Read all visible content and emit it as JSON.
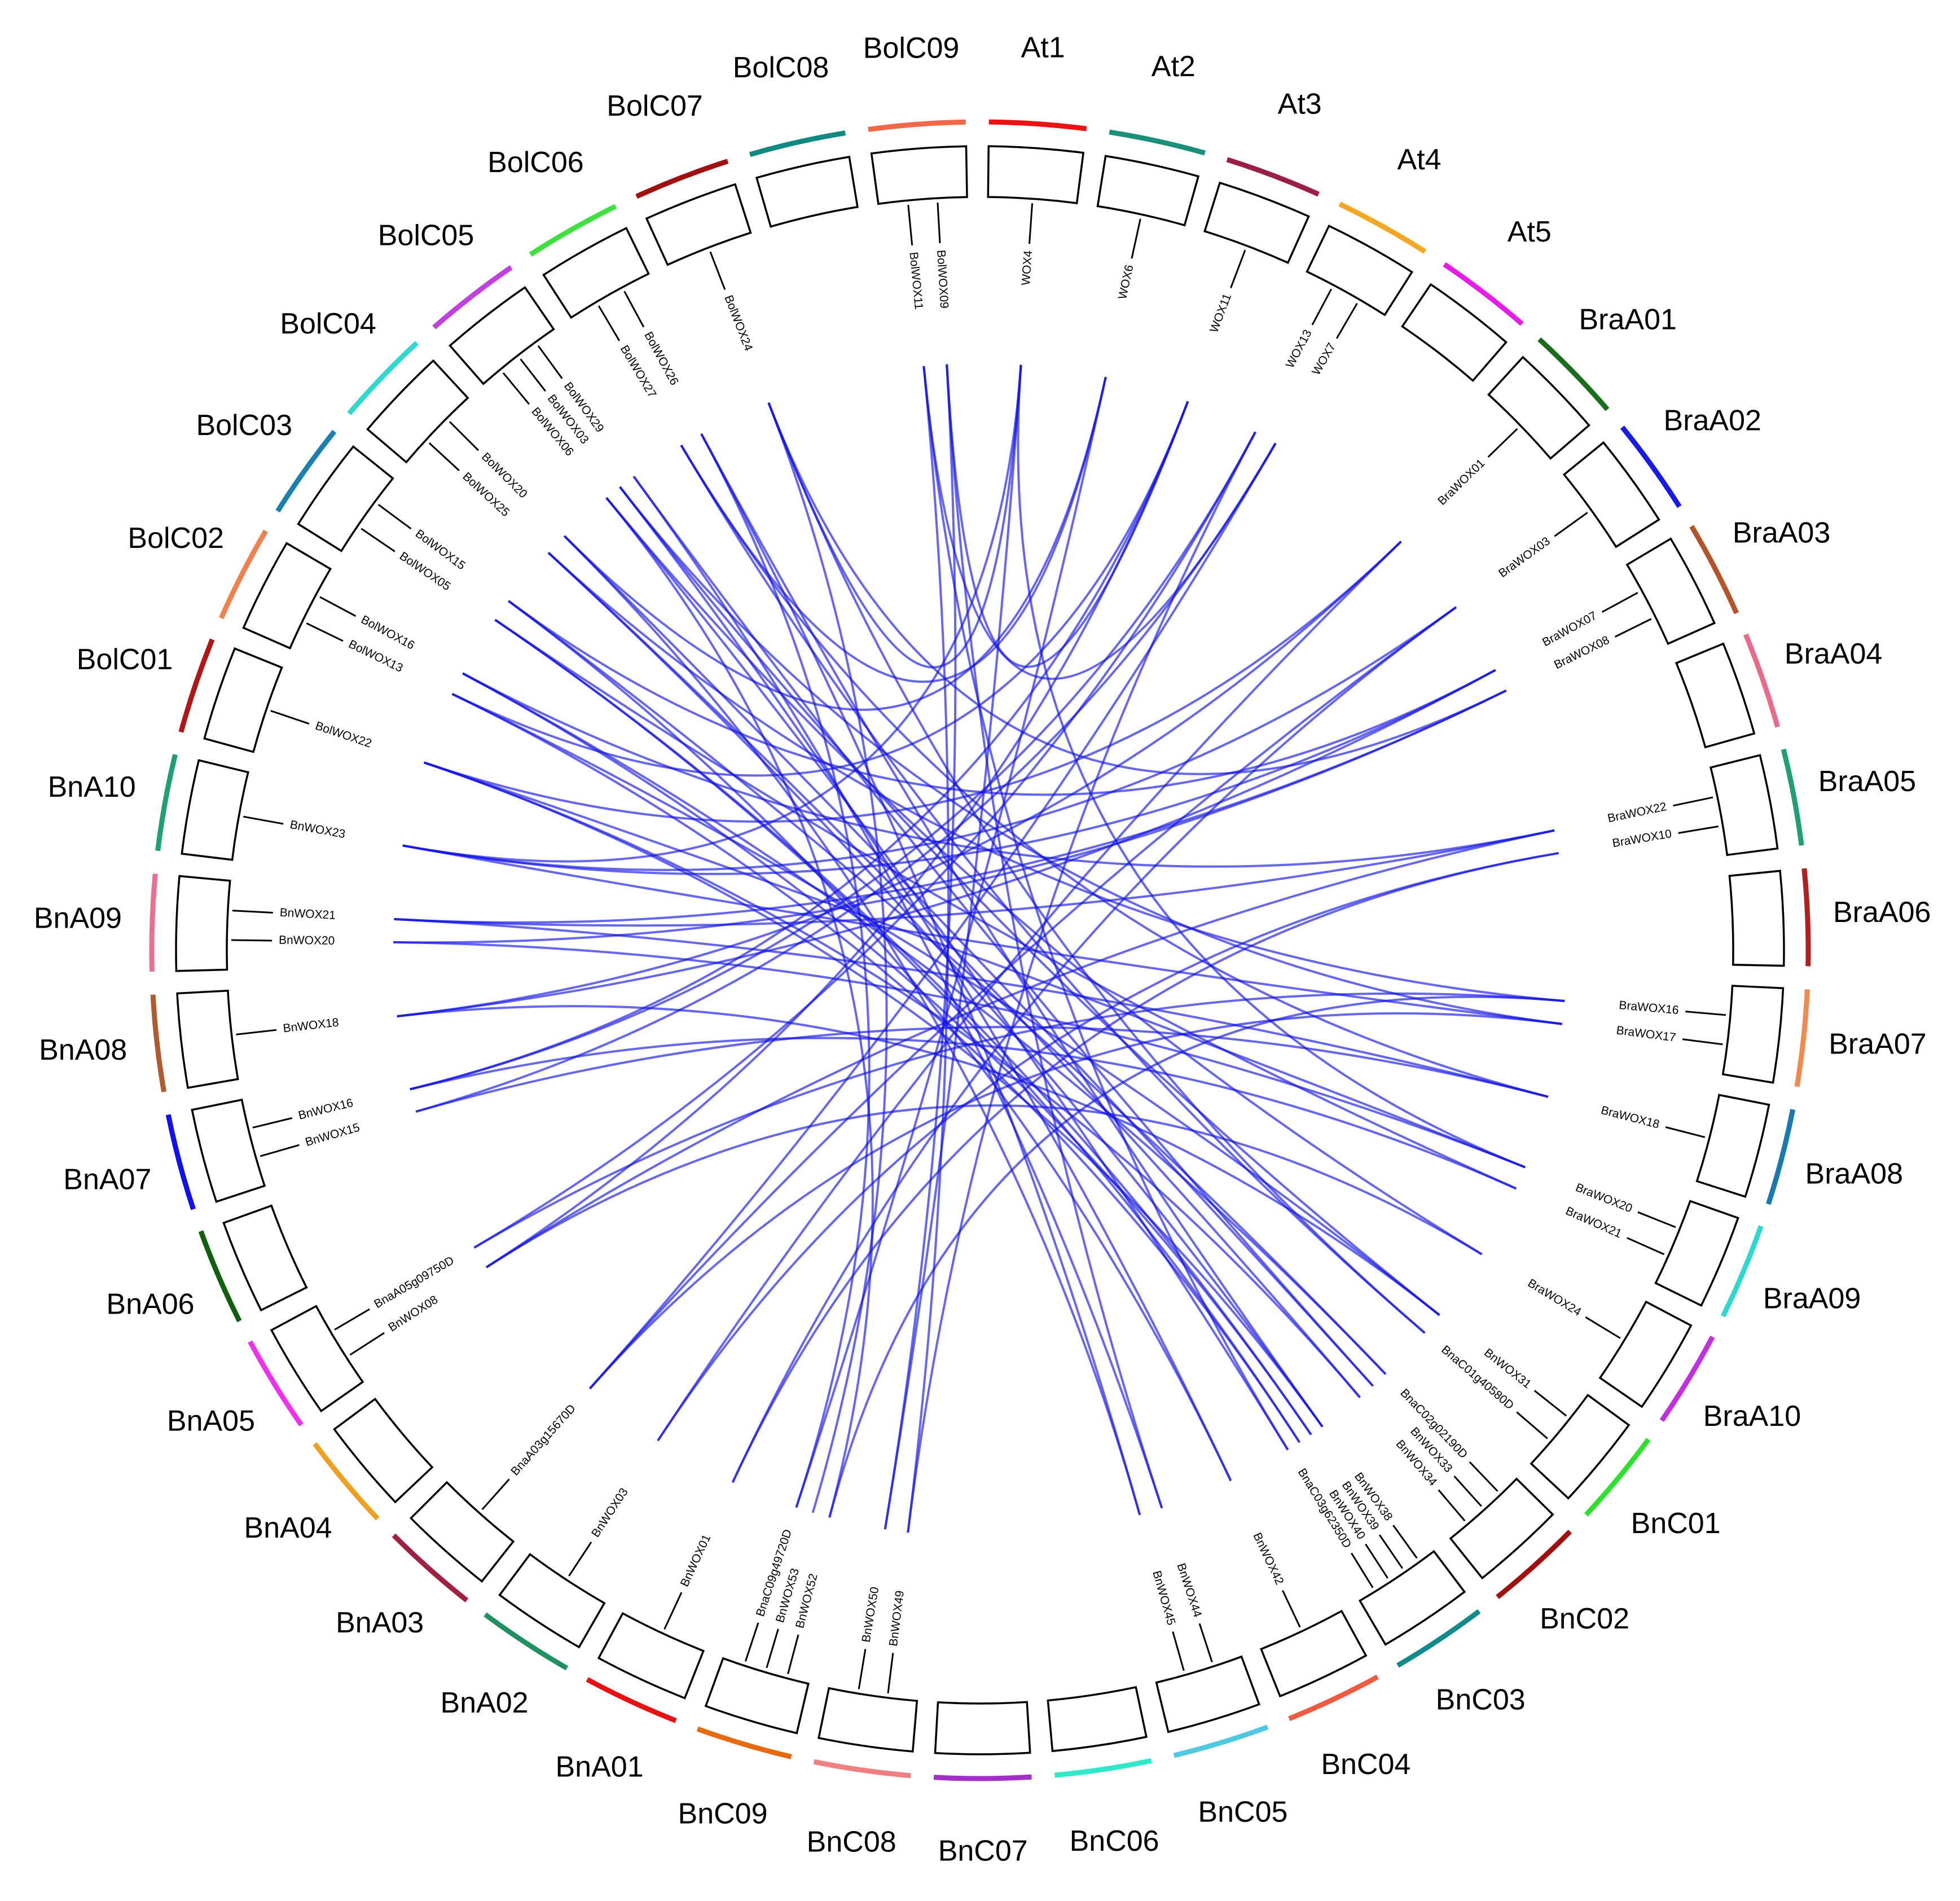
{
  "chromosomes": [
    {
      "name": "At1",
      "color": "#e81414"
    },
    {
      "name": "At2",
      "color": "#1a8f7a"
    },
    {
      "name": "At3",
      "color": "#9b1d4a"
    },
    {
      "name": "At4",
      "color": "#f5a623"
    },
    {
      "name": "At5",
      "color": "#e81ce8"
    },
    {
      "name": "BraA01",
      "color": "#1a6e1a"
    },
    {
      "name": "BraA02",
      "color": "#1a1ae8"
    },
    {
      "name": "BraA03",
      "color": "#b5542a"
    },
    {
      "name": "BraA04",
      "color": "#e86b8a"
    },
    {
      "name": "BraA05",
      "color": "#20a070"
    },
    {
      "name": "BraA06",
      "color": "#b02020"
    },
    {
      "name": "BraA07",
      "color": "#f08a50"
    },
    {
      "name": "BraA08",
      "color": "#1a7ab0"
    },
    {
      "name": "BraA09",
      "color": "#30d8d0"
    },
    {
      "name": "BraA10",
      "color": "#c030e0"
    },
    {
      "name": "BnC01",
      "color": "#30e030"
    },
    {
      "name": "BnC02",
      "color": "#a01010"
    },
    {
      "name": "BnC03",
      "color": "#108a8a"
    },
    {
      "name": "BnC04",
      "color": "#f05a40"
    },
    {
      "name": "BnC05",
      "color": "#50c8e0"
    },
    {
      "name": "BnC06",
      "color": "#30e8c8"
    },
    {
      "name": "BnC07",
      "color": "#a030c8"
    },
    {
      "name": "BnC08",
      "color": "#f08080"
    },
    {
      "name": "BnC09",
      "color": "#e86a10"
    },
    {
      "name": "BnA01",
      "color": "#e81010"
    },
    {
      "name": "BnA02",
      "color": "#209060"
    },
    {
      "name": "BnA03",
      "color": "#a02040"
    },
    {
      "name": "BnA04",
      "color": "#f0a020"
    },
    {
      "name": "BnA05",
      "color": "#f030f0"
    },
    {
      "name": "BnA06",
      "color": "#106010"
    },
    {
      "name": "BnA07",
      "color": "#1010f0"
    },
    {
      "name": "BnA08",
      "color": "#b05a30"
    },
    {
      "name": "BnA09",
      "color": "#e87090"
    },
    {
      "name": "BnA10",
      "color": "#20a070"
    },
    {
      "name": "BolC01",
      "color": "#b01818"
    },
    {
      "name": "BolC02",
      "color": "#f08050"
    },
    {
      "name": "BolC03",
      "color": "#1a80b0"
    },
    {
      "name": "BolC04",
      "color": "#30d8d0"
    },
    {
      "name": "BolC05",
      "color": "#c040e0"
    },
    {
      "name": "BolC06",
      "color": "#40e040"
    },
    {
      "name": "BolC07",
      "color": "#a01010"
    },
    {
      "name": "BolC08",
      "color": "#108a80"
    },
    {
      "name": "BolC09",
      "color": "#f06848"
    }
  ],
  "genes": [
    {
      "label": "WOX4",
      "chromosome": 0
    },
    {
      "label": "WOX6",
      "chromosome": 1
    },
    {
      "label": "WOX11",
      "chromosome": 2
    },
    {
      "label": "WOX13",
      "chromosome": 3
    },
    {
      "label": "WOX7",
      "chromosome": 3
    },
    {
      "label": "BraWOX01",
      "chromosome": 5
    },
    {
      "label": "BraWOX03",
      "chromosome": 6
    },
    {
      "label": "BraWOX07",
      "chromosome": 7
    },
    {
      "label": "BraWOX08",
      "chromosome": 7
    },
    {
      "label": "BraWOX22",
      "chromosome": 9
    },
    {
      "label": "BraWOX10",
      "chromosome": 9
    },
    {
      "label": "BraWOX16",
      "chromosome": 11
    },
    {
      "label": "BraWOX17",
      "chromosome": 11
    },
    {
      "label": "BraWOX18",
      "chromosome": 12
    },
    {
      "label": "BraWOX20",
      "chromosome": 13
    },
    {
      "label": "BraWOX21",
      "chromosome": 13
    },
    {
      "label": "BraWOX24",
      "chromosome": 14
    },
    {
      "label": "BnWOX31",
      "chromosome": 15
    },
    {
      "label": "BnaC01g40580D",
      "chromosome": 15
    },
    {
      "label": "BnaC02g02190D",
      "chromosome": 16
    },
    {
      "label": "BnWOX33",
      "chromosome": 16
    },
    {
      "label": "BnWOX34",
      "chromosome": 16
    },
    {
      "label": "BnWOX38",
      "chromosome": 17
    },
    {
      "label": "BnWOX39",
      "chromosome": 17
    },
    {
      "label": "BnWOX40",
      "chromosome": 17
    },
    {
      "label": "BnaC03g62350D",
      "chromosome": 17
    },
    {
      "label": "BnWOX42",
      "chromosome": 18
    },
    {
      "label": "BnWOX44",
      "chromosome": 19
    },
    {
      "label": "BnWOX45",
      "chromosome": 19
    },
    {
      "label": "BnWOX49",
      "chromosome": 22
    },
    {
      "label": "BnWOX50",
      "chromosome": 22
    },
    {
      "label": "BnWOX52",
      "chromosome": 23
    },
    {
      "label": "BnWOX53",
      "chromosome": 23
    },
    {
      "label": "BnaC09g49720D",
      "chromosome": 23
    },
    {
      "label": "BnWOX01",
      "chromosome": 24
    },
    {
      "label": "BnWOX03",
      "chromosome": 25
    },
    {
      "label": "BnaA03g15670D",
      "chromosome": 26
    },
    {
      "label": "BnWOX08",
      "chromosome": 28
    },
    {
      "label": "BnaA05g09750D",
      "chromosome": 28
    },
    {
      "label": "BnWOX15",
      "chromosome": 30
    },
    {
      "label": "BnWOX16",
      "chromosome": 30
    },
    {
      "label": "BnWOX18",
      "chromosome": 31
    },
    {
      "label": "BnWOX20",
      "chromosome": 32
    },
    {
      "label": "BnWOX21",
      "chromosome": 32
    },
    {
      "label": "BnWOX23",
      "chromosome": 33
    },
    {
      "label": "BolWOX22",
      "chromosome": 34
    },
    {
      "label": "BolWOX13",
      "chromosome": 35
    },
    {
      "label": "BolWOX16",
      "chromosome": 35
    },
    {
      "label": "BolWOX05",
      "chromosome": 36
    },
    {
      "label": "BolWOX15",
      "chromosome": 36
    },
    {
      "label": "BolWOX25",
      "chromosome": 37
    },
    {
      "label": "BolWOX20",
      "chromosome": 37
    },
    {
      "label": "BolWOX06",
      "chromosome": 38
    },
    {
      "label": "BolWOX03",
      "chromosome": 38
    },
    {
      "label": "BolWOX29",
      "chromosome": 38
    },
    {
      "label": "BolWOX27",
      "chromosome": 39
    },
    {
      "label": "BolWOX26",
      "chromosome": 39
    },
    {
      "label": "BolWOX24",
      "chromosome": 40
    },
    {
      "label": "BolWOX11",
      "chromosome": 42
    },
    {
      "label": "BolWOX09",
      "chromosome": 42
    }
  ],
  "link_color": "#1414e6",
  "links": [
    [
      0,
      30
    ],
    [
      0,
      44
    ],
    [
      0,
      14
    ],
    [
      1,
      33
    ],
    [
      1,
      51
    ],
    [
      2,
      46
    ],
    [
      2,
      40
    ],
    [
      3,
      38
    ],
    [
      3,
      29
    ],
    [
      4,
      39
    ],
    [
      5,
      45
    ],
    [
      5,
      35
    ],
    [
      6,
      44
    ],
    [
      6,
      36
    ],
    [
      7,
      41
    ],
    [
      7,
      49
    ],
    [
      8,
      42
    ],
    [
      9,
      47
    ],
    [
      9,
      37
    ],
    [
      10,
      34
    ],
    [
      11,
      50
    ],
    [
      11,
      31
    ],
    [
      12,
      53
    ],
    [
      13,
      43
    ],
    [
      13,
      55
    ],
    [
      14,
      45
    ],
    [
      15,
      48
    ],
    [
      16,
      52
    ],
    [
      17,
      46
    ],
    [
      17,
      41
    ],
    [
      18,
      57
    ],
    [
      19,
      49
    ],
    [
      20,
      54
    ],
    [
      21,
      50
    ],
    [
      22,
      45
    ],
    [
      22,
      56
    ],
    [
      23,
      47
    ],
    [
      24,
      48
    ],
    [
      25,
      58
    ],
    [
      26,
      53
    ],
    [
      27,
      59
    ],
    [
      28,
      51
    ],
    [
      29,
      58
    ],
    [
      30,
      59
    ],
    [
      31,
      52
    ],
    [
      32,
      57
    ],
    [
      33,
      56
    ],
    [
      34,
      6
    ],
    [
      35,
      10
    ],
    [
      36,
      12
    ],
    [
      37,
      16
    ],
    [
      38,
      11
    ],
    [
      39,
      13
    ],
    [
      40,
      15
    ],
    [
      41,
      5
    ],
    [
      42,
      14
    ],
    [
      43,
      9
    ],
    [
      44,
      7
    ],
    [
      45,
      21
    ],
    [
      46,
      24
    ],
    [
      47,
      19
    ],
    [
      48,
      23
    ],
    [
      49,
      26
    ],
    [
      50,
      22
    ],
    [
      51,
      20
    ],
    [
      52,
      25
    ],
    [
      53,
      17
    ],
    [
      54,
      27
    ],
    [
      55,
      18
    ],
    [
      56,
      28
    ],
    [
      57,
      8
    ],
    [
      58,
      4
    ],
    [
      59,
      2
    ],
    [
      0,
      57
    ],
    [
      1,
      55
    ],
    [
      2,
      37
    ],
    [
      3,
      40
    ],
    [
      4,
      36
    ],
    [
      8,
      43
    ],
    [
      12,
      44
    ]
  ]
}
